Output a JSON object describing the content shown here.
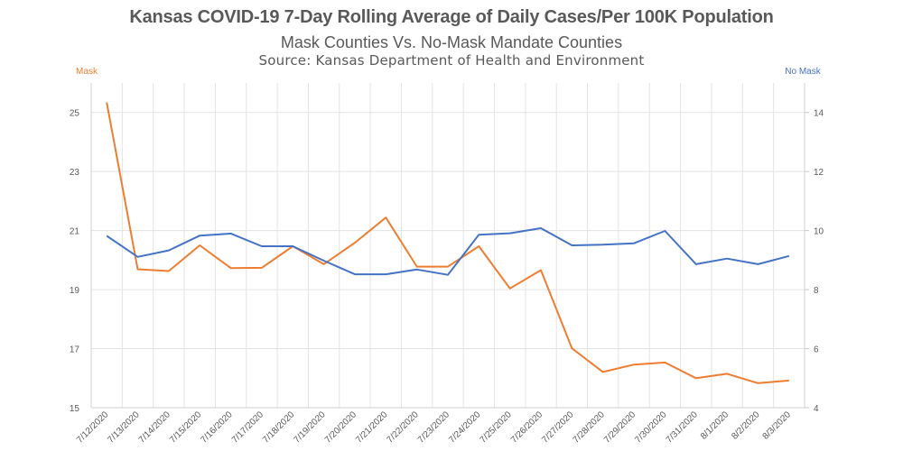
{
  "chart_data": {
    "type": "line",
    "title": "Kansas COVID-19 7-Day Rolling Average of Daily Cases/Per 100K Population",
    "subtitle": "Mask Counties Vs. No-Mask Mandate Counties",
    "source": "Source: Kansas Department of Health and Environment",
    "xlabel": "",
    "categories": [
      "7/12/2020",
      "7/13/2020",
      "7/14/2020",
      "7/15/2020",
      "7/16/2020",
      "7/17/2020",
      "7/18/2020",
      "7/19/2020",
      "7/20/2020",
      "7/21/2020",
      "7/22/2020",
      "7/23/2020",
      "7/24/2020",
      "7/25/2020",
      "7/26/2020",
      "7/27/2020",
      "7/28/2020",
      "7/29/2020",
      "7/30/2020",
      "7/31/2020",
      "8/1/2020",
      "8/2/2020",
      "8/3/2020"
    ],
    "series": [
      {
        "name": "Mask",
        "axis": "left",
        "color": "#ED7D31",
        "values": [
          25.34,
          19.69,
          19.63,
          20.5,
          19.73,
          19.74,
          20.47,
          19.86,
          20.59,
          21.44,
          19.78,
          19.78,
          20.47,
          19.04,
          19.66,
          17.01,
          16.21,
          16.46,
          16.53,
          16.0,
          16.15,
          15.83,
          15.92
        ]
      },
      {
        "name": "No Mask",
        "axis": "right",
        "color": "#4472C4",
        "values": [
          9.82,
          9.11,
          9.33,
          9.83,
          9.9,
          9.47,
          9.47,
          8.98,
          8.52,
          8.52,
          8.68,
          8.5,
          9.86,
          9.91,
          10.08,
          9.5,
          9.52,
          9.57,
          9.99,
          8.86,
          9.05,
          8.86,
          9.14
        ]
      }
    ],
    "y_left": {
      "label": "Mask",
      "range": [
        15,
        26
      ],
      "ticks": [
        15,
        17,
        19,
        21,
        23,
        25
      ]
    },
    "y_right": {
      "label": "No Mask",
      "range": [
        4,
        15
      ],
      "ticks": [
        4,
        6,
        8,
        10,
        12,
        14
      ]
    },
    "grid": true,
    "legend": "none"
  }
}
